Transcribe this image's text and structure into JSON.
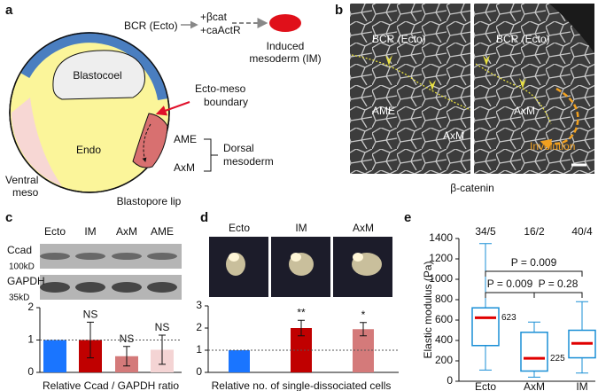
{
  "panel_labels": [
    "a",
    "b",
    "c",
    "d",
    "e"
  ],
  "schematic": {
    "bcr": "BCR (Ecto)",
    "treatment": [
      "+βcat",
      "+caActR"
    ],
    "induced": [
      "Induced",
      "mesoderm (IM)"
    ],
    "blastocoel": "Blastocoel",
    "boundary": [
      "Ecto-meso",
      "boundary"
    ],
    "endo": "Endo",
    "ame": "AME",
    "axm": "AxM",
    "dorsal": [
      "Dorsal",
      "mesoderm"
    ],
    "ventral": [
      "Ventral",
      "meso"
    ],
    "lip": "Blastopore lip"
  },
  "micrographs": {
    "left_labels": [
      "BCR (Ecto)",
      "AME",
      "AxM"
    ],
    "right_labels": [
      "BCR (Ecto)",
      "AxM",
      "Involution"
    ],
    "stain": "β-catenin"
  },
  "chart_data": [
    {
      "type": "bar",
      "categories": [
        "Ecto",
        "IM",
        "AxM",
        "AME"
      ],
      "blots": [
        {
          "name": "Ccad",
          "size": "100kD"
        },
        {
          "name": "GAPDH",
          "size": "35kD"
        }
      ],
      "values": [
        1,
        1,
        0.5,
        0.7
      ],
      "errors": [
        null,
        0.55,
        0.3,
        0.45
      ],
      "significance": [
        null,
        "NS",
        "NS",
        "NS"
      ],
      "colors": [
        "#1a75ff",
        "#c00000",
        "#d47a7a",
        "#f4d4d4"
      ],
      "ylim": [
        0,
        2
      ],
      "yticks": [
        0,
        1,
        2
      ],
      "reference": 1,
      "xlabel": "Relative Ccad / GAPDH ratio"
    },
    {
      "type": "bar",
      "categories": [
        "Ecto",
        "IM",
        "AxM"
      ],
      "values": [
        1,
        2.0,
        1.95
      ],
      "errors": [
        null,
        0.35,
        0.3
      ],
      "significance": [
        null,
        "**",
        "*"
      ],
      "colors": [
        "#1a75ff",
        "#c00000",
        "#d47a7a"
      ],
      "ylim": [
        0,
        3
      ],
      "yticks": [
        0,
        1,
        2,
        3
      ],
      "reference": 1,
      "xlabel": "Relative no. of single-dissociated cells"
    },
    {
      "type": "box",
      "categories": [
        "Ecto",
        "AxM",
        "IM"
      ],
      "counts": [
        "34/5",
        "16/2",
        "40/4"
      ],
      "whisker_low": [
        110,
        40,
        80
      ],
      "q1": [
        350,
        100,
        230
      ],
      "median": [
        623,
        225,
        372
      ],
      "q3": [
        720,
        480,
        500
      ],
      "whisker_high": [
        1350,
        580,
        780
      ],
      "box_color": "#1a8fd6",
      "median_color": "#e00000",
      "ylabel": "Elastic modulus (Pa)",
      "ylim": [
        0,
        1400
      ],
      "yticks": [
        0,
        200,
        400,
        600,
        800,
        1000,
        1200,
        1400
      ],
      "comparisons": [
        "P = 0.009",
        "P = 0.009",
        "P = 0.28"
      ]
    }
  ]
}
